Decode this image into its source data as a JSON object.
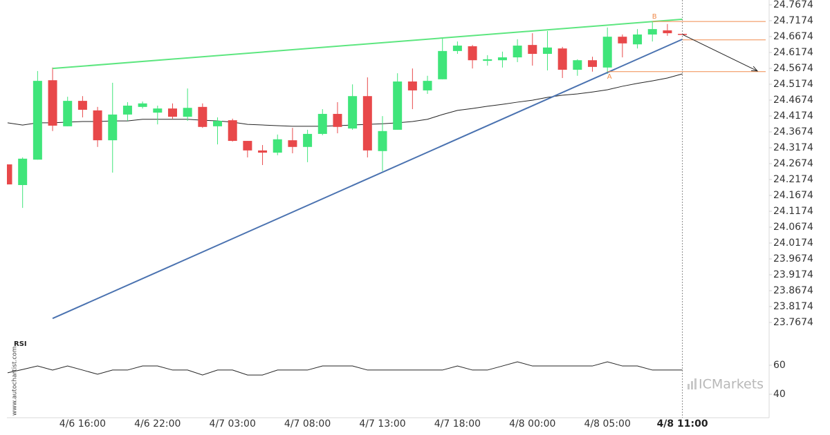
{
  "chart_data": {
    "type": "candlestick",
    "categories": [
      null,
      null,
      null,
      null,
      null,
      "4/6 16:00",
      null,
      null,
      null,
      null,
      "4/6 22:00",
      null,
      null,
      null,
      null,
      "4/7 03:00",
      null,
      null,
      null,
      null,
      "4/7 08:00",
      null,
      null,
      null,
      null,
      "4/7 13:00",
      null,
      null,
      null,
      null,
      "4/7 18:00",
      null,
      null,
      null,
      null,
      "4/8 00:00",
      null,
      null,
      null,
      null,
      "4/8 05:00",
      null,
      null,
      null,
      null,
      "4/8 11:00"
    ],
    "open": [
      24.265,
      24.2,
      24.28,
      24.53,
      24.385,
      24.465,
      24.435,
      24.341,
      24.422,
      24.446,
      24.428,
      24.441,
      24.415,
      24.446,
      24.385,
      24.404,
      24.339,
      24.309,
      24.302,
      24.341,
      24.32,
      24.361,
      24.424,
      24.378,
      24.48,
      24.307,
      24.374,
      24.526,
      24.498,
      24.533,
      24.622,
      24.637,
      24.591,
      24.593,
      24.602,
      24.641,
      24.613,
      24.63,
      24.563,
      24.593,
      24.57,
      24.667,
      24.643,
      24.674,
      24.687,
      24.676
    ],
    "high": [
      24.265,
      24.287,
      24.559,
      24.57,
      24.478,
      24.48,
      24.446,
      24.522,
      24.461,
      24.463,
      24.45,
      24.457,
      24.504,
      24.457,
      24.413,
      24.409,
      24.339,
      24.326,
      24.359,
      24.38,
      24.374,
      24.439,
      24.461,
      24.517,
      24.539,
      24.417,
      24.552,
      24.567,
      24.544,
      24.663,
      24.652,
      24.641,
      24.609,
      24.62,
      24.659,
      24.678,
      24.685,
      24.635,
      24.596,
      24.604,
      24.696,
      24.674,
      24.691,
      24.715,
      24.707,
      24.676
    ],
    "low": [
      24.202,
      24.128,
      24.28,
      24.37,
      24.385,
      24.413,
      24.32,
      24.239,
      24.402,
      24.441,
      24.391,
      24.409,
      24.402,
      24.38,
      24.328,
      24.337,
      24.287,
      24.263,
      24.294,
      24.3,
      24.272,
      24.357,
      24.363,
      24.374,
      24.287,
      24.244,
      24.374,
      24.439,
      24.487,
      24.533,
      24.613,
      24.567,
      24.576,
      24.57,
      24.587,
      24.576,
      24.561,
      24.537,
      24.544,
      24.557,
      24.55,
      24.602,
      24.63,
      24.652,
      24.67,
      24.674
    ],
    "close": [
      24.202,
      24.283,
      24.528,
      24.387,
      24.465,
      24.437,
      24.341,
      24.422,
      24.45,
      24.457,
      24.441,
      24.415,
      24.443,
      24.383,
      24.402,
      24.339,
      24.309,
      24.302,
      24.344,
      24.32,
      24.361,
      24.424,
      24.383,
      24.48,
      24.309,
      24.37,
      24.526,
      24.498,
      24.528,
      24.622,
      24.639,
      24.593,
      24.596,
      24.602,
      24.639,
      24.613,
      24.633,
      24.563,
      24.593,
      24.572,
      24.667,
      24.646,
      24.674,
      24.691,
      24.678,
      24.674
    ],
    "up_color": "#3fe57a",
    "down_color": "#e8484a",
    "ylim": [
      23.7174,
      24.7826
    ],
    "yticks": [
      24.7674,
      24.7174,
      24.6674,
      24.6174,
      24.5674,
      24.5174,
      24.4674,
      24.4174,
      24.3674,
      24.3174,
      24.2674,
      24.2174,
      24.1674,
      24.1174,
      24.0674,
      24.0174,
      23.9674,
      23.9174,
      23.8674,
      23.8174,
      23.7674
    ],
    "moving_average": {
      "color": "#222222",
      "values": [
        24.396,
        24.389,
        24.396,
        24.396,
        24.398,
        24.4,
        24.4,
        24.402,
        24.402,
        24.407,
        24.407,
        24.407,
        24.407,
        24.404,
        24.402,
        24.398,
        24.391,
        24.389,
        24.387,
        24.385,
        24.385,
        24.385,
        24.387,
        24.389,
        24.391,
        24.393,
        24.396,
        24.4,
        24.407,
        24.422,
        24.435,
        24.441,
        24.448,
        24.454,
        24.461,
        24.467,
        24.476,
        24.483,
        24.487,
        24.493,
        24.5,
        24.511,
        24.52,
        24.528,
        24.537,
        24.55
      ]
    },
    "trendlines": [
      {
        "color": "#5ce67f",
        "from": [
          3,
          24.567
        ],
        "to": [
          45,
          24.722
        ]
      },
      {
        "color": "#4a72b0",
        "from": [
          3,
          23.78
        ],
        "to": [
          45,
          24.659
        ]
      }
    ],
    "levels": [
      {
        "value": 24.715,
        "start": 43,
        "label": "B",
        "color": "#f08a4b"
      },
      {
        "value": 24.657,
        "start": 45,
        "color": "#f08a4b"
      },
      {
        "value": 24.557,
        "start": 40,
        "label": "A",
        "color": "#f08a4b"
      }
    ],
    "forecast_arrow": {
      "color": "#222222",
      "from": [
        45,
        24.674
      ],
      "to": [
        50,
        24.559
      ]
    },
    "rsi": {
      "label": "RSI",
      "color": "#222222",
      "values": [
        54.8,
        57.1,
        59.5,
        56.7,
        59.5,
        56.7,
        53.8,
        56.7,
        56.7,
        59.5,
        59.5,
        56.7,
        56.7,
        53.3,
        56.7,
        56.7,
        53.3,
        53.3,
        56.7,
        56.7,
        56.7,
        59.5,
        59.5,
        59.5,
        56.7,
        56.7,
        56.7,
        56.7,
        56.7,
        56.7,
        59.5,
        56.7,
        56.7,
        59.5,
        62.4,
        59.5,
        59.5,
        59.5,
        59.5,
        59.5,
        62.4,
        59.5,
        59.5,
        56.7,
        56.7,
        56.7
      ],
      "ylim": [
        23.81,
        78.57
      ],
      "yticks": [
        60,
        40
      ]
    },
    "watermark": "www.autochartist.com",
    "logo": "ICMarkets"
  }
}
